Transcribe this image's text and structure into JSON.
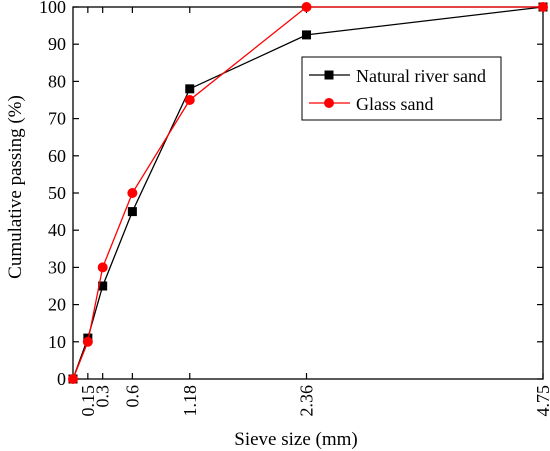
{
  "chart_data": {
    "type": "line",
    "title": "",
    "xlabel": "Sieve size (mm)",
    "ylabel": "Cumulative passing (%)",
    "xlim": [
      0,
      4.75
    ],
    "ylim": [
      0,
      100
    ],
    "x_ticks": [
      0.15,
      0.3,
      0.6,
      1.18,
      2.36,
      4.75
    ],
    "x_tick_labels": [
      "0.15",
      "0.3",
      "0.6",
      "1.18",
      "2.36",
      "4.75"
    ],
    "y_ticks": [
      0,
      10,
      20,
      30,
      40,
      50,
      60,
      70,
      80,
      90,
      100
    ],
    "y_tick_labels": [
      "0",
      "10",
      "20",
      "30",
      "40",
      "50",
      "60",
      "70",
      "80",
      "90",
      "100"
    ],
    "grid": false,
    "legend_position": "top-right",
    "series": [
      {
        "name": "Natural river sand",
        "color": "#000000",
        "marker": "square",
        "x": [
          0,
          0.15,
          0.3,
          0.6,
          1.18,
          2.36,
          4.75
        ],
        "y": [
          0,
          11,
          25,
          45,
          78,
          92.5,
          100
        ]
      },
      {
        "name": "Glass sand",
        "color": "#ff0000",
        "marker": "circle",
        "x": [
          0,
          0.15,
          0.3,
          0.6,
          1.18,
          2.36,
          4.75
        ],
        "y": [
          0,
          10,
          30,
          50,
          75,
          100,
          100
        ]
      }
    ]
  }
}
